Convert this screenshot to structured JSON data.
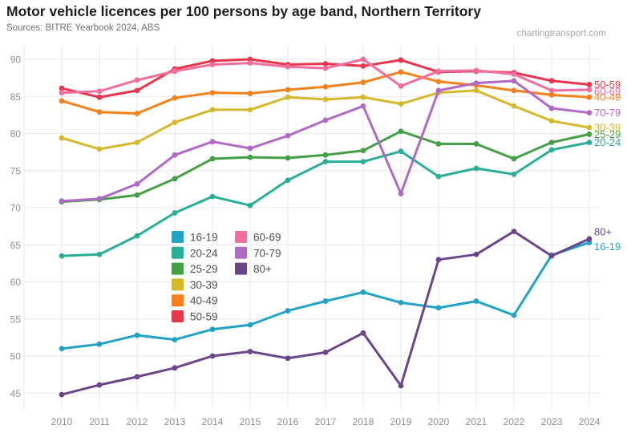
{
  "header": {
    "title": "Motor vehicle licences per 100 persons by age band, Northern Territory",
    "sources": "Sources: BITRE Yearbook 2024, ABS",
    "watermark": "chartingtransport.com"
  },
  "chart_data": {
    "type": "line",
    "title": "Motor vehicle licences per 100 persons by age band, Northern Territory",
    "xlabel": "",
    "ylabel": "licences per 100 persons",
    "x": [
      2010,
      2011,
      2012,
      2013,
      2014,
      2015,
      2016,
      2017,
      2018,
      2019,
      2020,
      2021,
      2022,
      2023,
      2024
    ],
    "ylim": [
      45,
      90
    ],
    "y_ticks": [
      45,
      50,
      55,
      60,
      65,
      70,
      75,
      80,
      85,
      90
    ],
    "grid": true,
    "legend_position": "inside-center-left",
    "series": [
      {
        "name": "16-19",
        "color": "#23a3c4",
        "label_dy": 5,
        "values": [
          51.0,
          51.6,
          52.8,
          52.2,
          53.6,
          54.2,
          56.1,
          57.4,
          58.6,
          57.2,
          56.5,
          57.4,
          55.5,
          63.6,
          65.3
        ]
      },
      {
        "name": "20-24",
        "color": "#2bae96",
        "label_dy": 0,
        "values": [
          63.5,
          63.7,
          66.2,
          69.3,
          71.5,
          70.3,
          73.7,
          76.2,
          76.2,
          77.6,
          74.2,
          75.3,
          74.5,
          77.8,
          78.8
        ]
      },
      {
        "name": "25-29",
        "color": "#459f47",
        "label_dy": 0,
        "values": [
          70.8,
          71.1,
          71.7,
          73.9,
          76.6,
          76.8,
          76.7,
          77.1,
          77.7,
          80.3,
          78.6,
          78.6,
          76.6,
          78.8,
          79.9
        ]
      },
      {
        "name": "30-39",
        "color": "#d5b92d",
        "label_dy": 0,
        "values": [
          79.4,
          77.9,
          78.8,
          81.5,
          83.2,
          83.2,
          84.9,
          84.6,
          84.9,
          84.0,
          85.5,
          85.8,
          83.7,
          81.7,
          80.8
        ]
      },
      {
        "name": "40-49",
        "color": "#f5811d",
        "label_dy": 0,
        "values": [
          84.4,
          82.9,
          82.7,
          84.8,
          85.5,
          85.4,
          85.9,
          86.3,
          86.9,
          88.3,
          87.0,
          86.5,
          85.8,
          85.2,
          84.9
        ]
      },
      {
        "name": "50-59",
        "color": "#e6354c",
        "label_dy": 0,
        "values": [
          86.1,
          84.9,
          85.8,
          88.7,
          89.8,
          90.0,
          89.3,
          89.4,
          89.1,
          89.9,
          88.3,
          88.4,
          88.2,
          87.1,
          86.6
        ]
      },
      {
        "name": "60-69",
        "color": "#f26e9e",
        "label_dy": 2,
        "values": [
          85.5,
          85.7,
          87.2,
          88.4,
          89.3,
          89.5,
          89.0,
          88.8,
          90.0,
          86.4,
          88.4,
          88.5,
          88.0,
          85.8,
          85.9
        ]
      },
      {
        "name": "70-79",
        "color": "#b069c5",
        "label_dy": 0,
        "values": [
          70.9,
          71.2,
          73.2,
          77.1,
          78.9,
          78.0,
          79.7,
          81.8,
          83.7,
          71.9,
          85.8,
          86.8,
          87.1,
          83.4,
          82.8
        ]
      },
      {
        "name": "80+",
        "color": "#6b4589",
        "label_dy": -9,
        "values": [
          44.8,
          46.1,
          47.2,
          48.4,
          50.0,
          50.6,
          49.7,
          50.5,
          53.1,
          46.0,
          63.0,
          63.7,
          66.8,
          63.5,
          65.8
        ]
      }
    ],
    "legend_columns": [
      [
        "16-19",
        "20-24",
        "25-29",
        "30-39",
        "40-49",
        "50-59"
      ],
      [
        "60-69",
        "70-79",
        "80+"
      ]
    ]
  }
}
